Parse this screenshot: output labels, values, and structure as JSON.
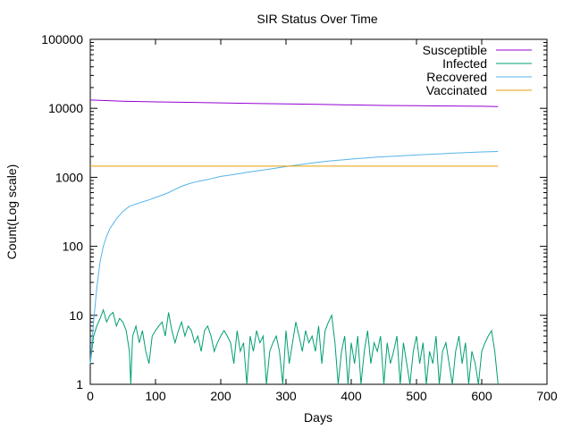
{
  "chart_data": {
    "type": "line",
    "title": "SIR Status Over Time",
    "xlabel": "Days",
    "ylabel": "Count(Log scale)",
    "xlim": [
      0,
      700
    ],
    "ylim": [
      1,
      100000
    ],
    "yscale": "log",
    "grid": false,
    "legend_position": "top-right",
    "x_ticks": [
      0,
      100,
      200,
      300,
      400,
      500,
      600,
      700
    ],
    "y_ticks": [
      1,
      10,
      100,
      1000,
      10000,
      100000
    ],
    "y_tick_labels": [
      "1",
      "10",
      "100",
      "1000",
      "10000",
      "100000"
    ],
    "series": [
      {
        "name": "Susceptible",
        "color": "#9400d3",
        "x": [
          0,
          50,
          100,
          150,
          200,
          250,
          300,
          350,
          400,
          450,
          500,
          550,
          600,
          625
        ],
        "y": [
          13200,
          12700,
          12400,
          12200,
          12000,
          11800,
          11600,
          11400,
          11200,
          11000,
          10900,
          10800,
          10700,
          10600
        ]
      },
      {
        "name": "Infected",
        "color": "#009e73",
        "x": [
          0,
          5,
          10,
          15,
          20,
          25,
          30,
          35,
          40,
          45,
          50,
          55,
          60,
          62,
          65,
          70,
          75,
          80,
          85,
          90,
          95,
          100,
          105,
          110,
          115,
          120,
          125,
          130,
          135,
          140,
          145,
          150,
          155,
          160,
          165,
          170,
          175,
          180,
          185,
          190,
          195,
          200,
          205,
          210,
          215,
          220,
          225,
          230,
          235,
          240,
          245,
          250,
          255,
          260,
          265,
          270,
          275,
          280,
          285,
          290,
          295,
          300,
          305,
          310,
          315,
          320,
          325,
          330,
          335,
          340,
          345,
          350,
          355,
          360,
          365,
          370,
          375,
          380,
          385,
          390,
          395,
          400,
          405,
          410,
          415,
          420,
          425,
          430,
          435,
          440,
          445,
          450,
          455,
          460,
          465,
          470,
          475,
          480,
          485,
          490,
          495,
          500,
          505,
          510,
          515,
          520,
          525,
          530,
          535,
          540,
          545,
          550,
          555,
          560,
          565,
          570,
          575,
          580,
          585,
          590,
          595,
          600,
          605,
          610,
          615,
          620,
          625
        ],
        "y": [
          2,
          5,
          7,
          9,
          12,
          8,
          10,
          11,
          7,
          9,
          8,
          6,
          3,
          1,
          5,
          7,
          4,
          6,
          3,
          2,
          5,
          6,
          7,
          8,
          5,
          11,
          6,
          4,
          6,
          8,
          5,
          7,
          6,
          4,
          5,
          3,
          6,
          7,
          5,
          3,
          4,
          5,
          6,
          5,
          4,
          2,
          6,
          3,
          4,
          1,
          5,
          3,
          6,
          4,
          5,
          1,
          3,
          4,
          5,
          3,
          1,
          6,
          2,
          4,
          8,
          5,
          3,
          6,
          4,
          5,
          3,
          7,
          2,
          6,
          8,
          10,
          4,
          1,
          3,
          5,
          1,
          4,
          2,
          5,
          1,
          3,
          6,
          2,
          4,
          3,
          5,
          1,
          4,
          2,
          3,
          5,
          1,
          4,
          2,
          1,
          3,
          5,
          2,
          4,
          1,
          3,
          2,
          5,
          1,
          3,
          4,
          2,
          1,
          3,
          5,
          2,
          4,
          1,
          3,
          2,
          1,
          3,
          4,
          5,
          6,
          3,
          1
        ]
      },
      {
        "name": "Recovered",
        "color": "#56b4e9",
        "x": [
          0,
          5,
          10,
          15,
          20,
          25,
          30,
          40,
          50,
          60,
          70,
          80,
          90,
          100,
          110,
          120,
          130,
          140,
          150,
          160,
          170,
          180,
          190,
          200,
          220,
          240,
          260,
          280,
          300,
          320,
          340,
          360,
          380,
          400,
          420,
          440,
          460,
          480,
          500,
          520,
          540,
          560,
          580,
          600,
          625
        ],
        "y": [
          2,
          8,
          25,
          60,
          100,
          140,
          180,
          250,
          320,
          380,
          410,
          440,
          470,
          510,
          550,
          600,
          670,
          740,
          800,
          850,
          890,
          930,
          980,
          1030,
          1100,
          1180,
          1260,
          1340,
          1430,
          1520,
          1610,
          1700,
          1770,
          1840,
          1900,
          1960,
          2010,
          2060,
          2110,
          2160,
          2200,
          2250,
          2290,
          2330,
          2370
        ]
      },
      {
        "name": "Vaccinated",
        "color": "#e69f00",
        "x": [
          0,
          625
        ],
        "y": [
          1450,
          1450
        ]
      }
    ]
  }
}
